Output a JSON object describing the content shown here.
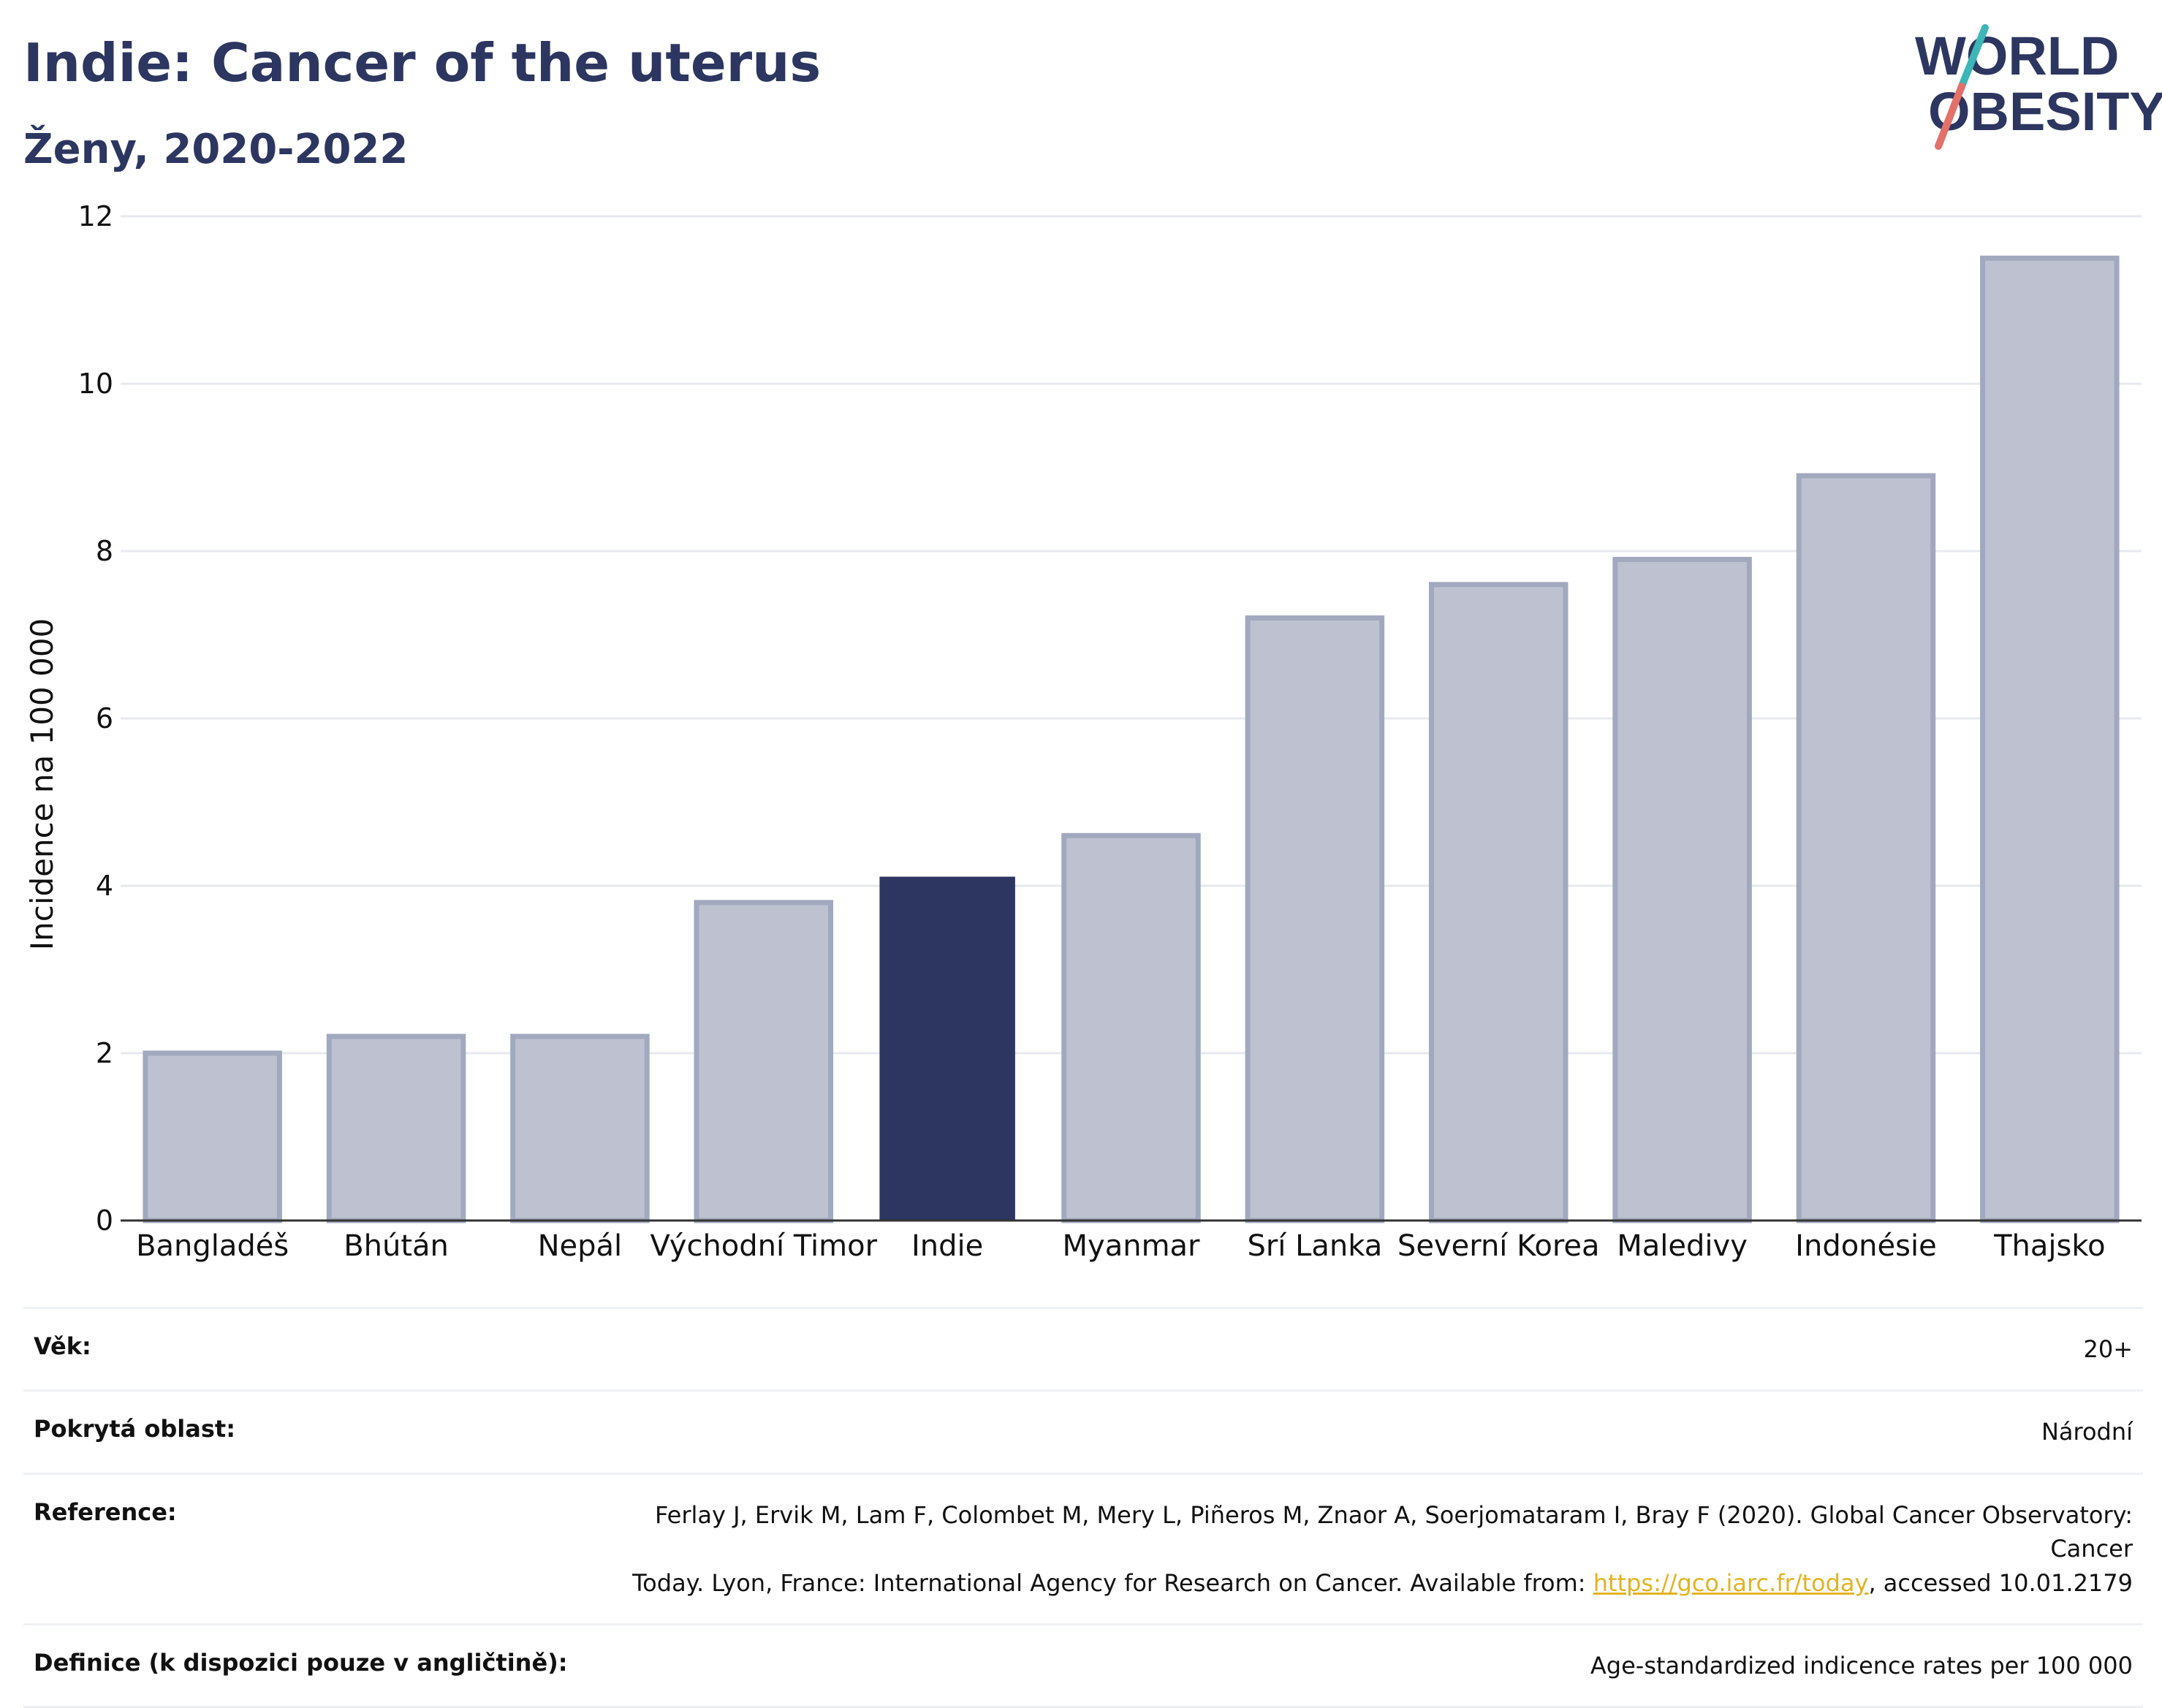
{
  "header": {
    "title": "Indie: Cancer of the uterus",
    "subtitle": "Ženy, 2020-2022"
  },
  "logo": {
    "line1": "WORLD",
    "line2": "OBESITY",
    "colors": {
      "text": "#2c3660",
      "slash_teal": "#3cb6b6",
      "slash_red": "#e4706a"
    }
  },
  "colors": {
    "highlight": "#2c3660",
    "bar_fill": "#bec2d0",
    "bar_stroke": "#a2a8bd",
    "grid": "#e6e9ee",
    "axis": "#333333"
  },
  "chart_data": {
    "type": "bar",
    "categories": [
      "Bangladéš",
      "Bhútán",
      "Nepál",
      "Východní Timor",
      "Indie",
      "Myanmar",
      "Srí Lanka",
      "Severní Korea",
      "Maledivy",
      "Indonésie",
      "Thajsko"
    ],
    "values": [
      2.0,
      2.2,
      2.2,
      3.8,
      4.1,
      4.6,
      7.2,
      7.6,
      7.9,
      8.9,
      11.5
    ],
    "highlight": "Indie",
    "ylabel": "Incidence na 100 000",
    "xlabel": "",
    "ylim": [
      0,
      12
    ],
    "yticks": [
      0,
      2,
      4,
      6,
      8,
      10,
      12
    ],
    "grid": true,
    "legend": "none"
  },
  "info": {
    "rows": [
      {
        "label": "Věk:",
        "value": "20+"
      },
      {
        "label": "Pokrytá oblast:",
        "value": "Národní"
      },
      {
        "label": "Reference:",
        "value_line1": "Ferlay J, Ervik M, Lam F, Colombet M, Mery L, Piñeros M, Znaor A, Soerjomataram I, Bray F (2020). Global Cancer Observatory: Cancer",
        "value_line2_pre": "Today. Lyon, France: International Agency for Research on Cancer. Available from: ",
        "link": "https://gco.iarc.fr/today",
        "value_line2_post": ", accessed 10.01.2179"
      },
      {
        "label": "Definice (k dispozici pouze v angličtině):",
        "value": "Age-standardized indicence rates per 100 000"
      }
    ]
  }
}
